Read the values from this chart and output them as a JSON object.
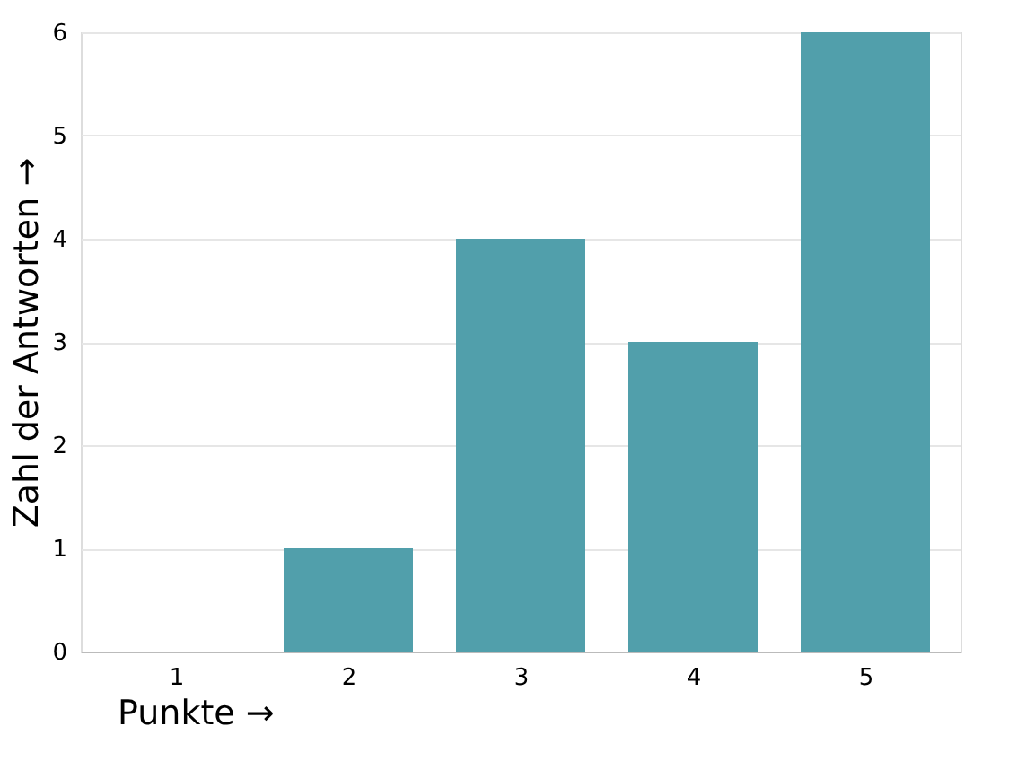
{
  "chart_data": {
    "type": "bar",
    "xlabel": "Punkte →",
    "ylabel": "Zahl der Antworten →",
    "categories": [
      "1",
      "2",
      "3",
      "4",
      "5"
    ],
    "values": [
      0,
      1,
      4,
      3,
      6
    ],
    "color": "#519fab",
    "ylim": [
      0,
      6
    ],
    "yticks": [
      0,
      1,
      2,
      3,
      4,
      5,
      6
    ],
    "grid": "y"
  }
}
